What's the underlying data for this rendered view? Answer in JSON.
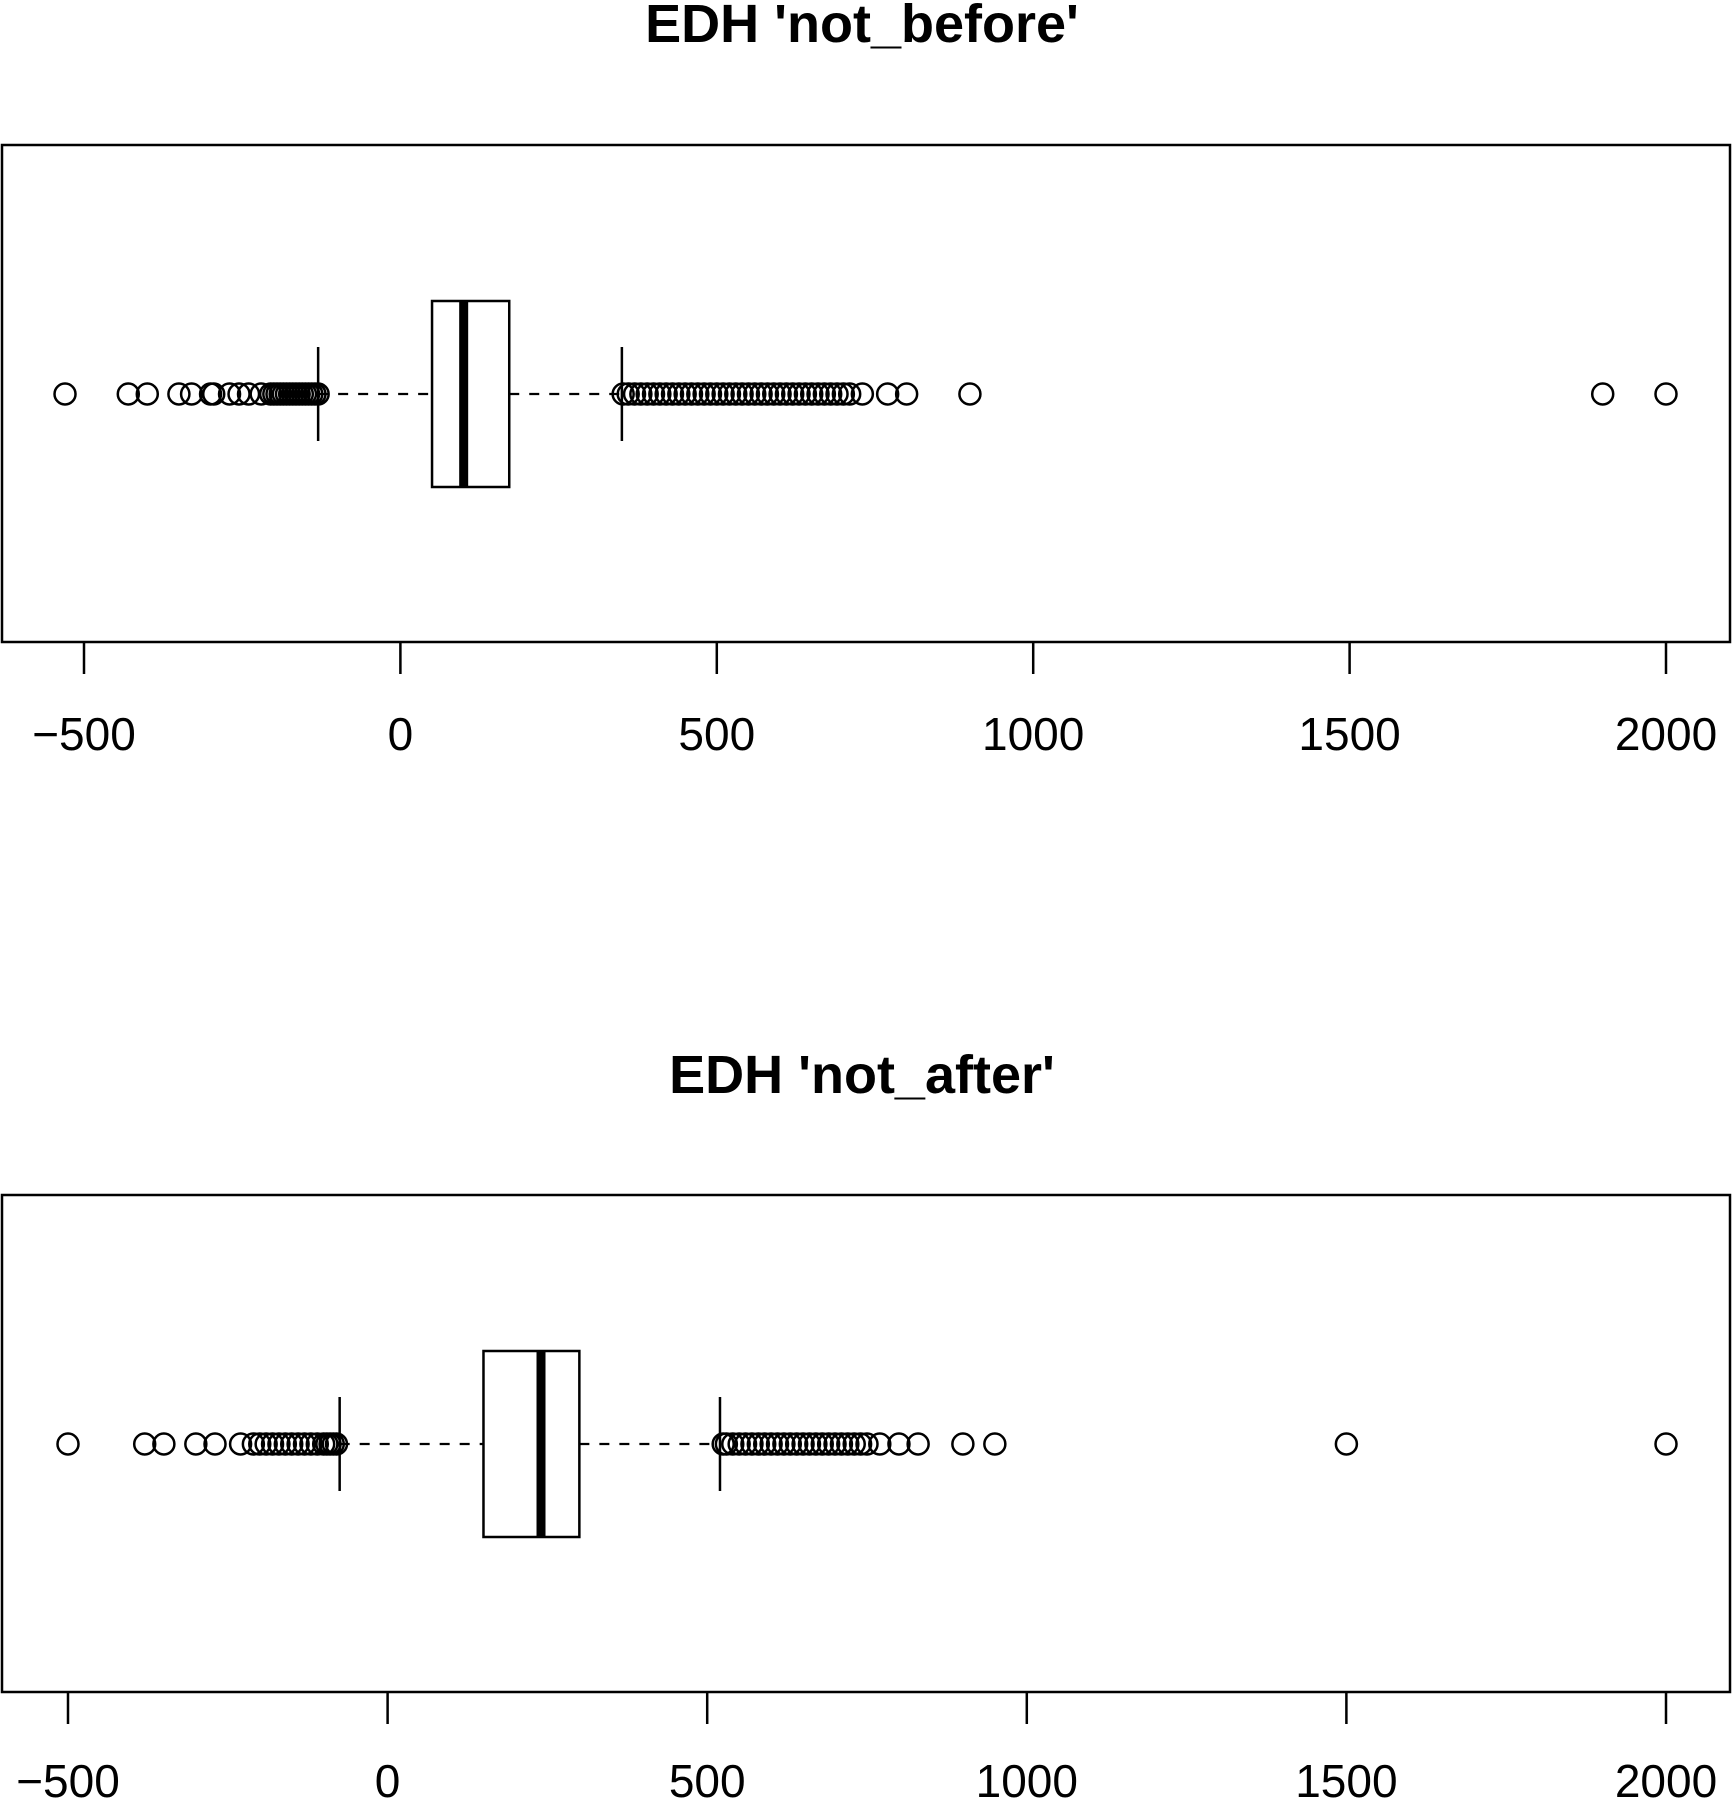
{
  "chart_data": [
    {
      "type": "boxplot",
      "orientation": "horizontal",
      "title": "EDH 'not_before'",
      "xlabel": "",
      "ylabel": "",
      "xlim": [
        -500,
        2000
      ],
      "ticks": [
        -500,
        0,
        500,
        1000,
        1500,
        2000
      ],
      "tick_labels": [
        "−500",
        "0",
        "500",
        "1000",
        "1500",
        "2000"
      ],
      "grid": false,
      "box": {
        "whisker_low": -130,
        "q1": 50,
        "median": 100,
        "q3": 172,
        "whisker_high": 350
      },
      "outliers": [
        -530,
        -430,
        -400,
        -350,
        -330,
        -300,
        -295,
        -270,
        -255,
        -240,
        -220,
        -205,
        -200,
        -195,
        -190,
        -185,
        -180,
        -175,
        -170,
        -165,
        -160,
        -155,
        -150,
        -145,
        -140,
        -135,
        -130,
        352,
        360,
        370,
        380,
        390,
        400,
        410,
        420,
        430,
        440,
        450,
        460,
        470,
        480,
        490,
        500,
        510,
        520,
        530,
        540,
        550,
        560,
        570,
        580,
        590,
        600,
        610,
        620,
        630,
        640,
        650,
        660,
        670,
        680,
        690,
        700,
        710,
        730,
        770,
        800,
        900,
        1900,
        2000
      ]
    },
    {
      "type": "boxplot",
      "orientation": "horizontal",
      "title": "EDH 'not_after'",
      "xlabel": "",
      "ylabel": "",
      "xlim": [
        -500,
        2000
      ],
      "ticks": [
        -500,
        0,
        500,
        1000,
        1500,
        2000
      ],
      "tick_labels": [
        "−500",
        "0",
        "500",
        "1000",
        "1500",
        "2000"
      ],
      "grid": false,
      "box": {
        "whisker_low": -75,
        "q1": 150,
        "median": 240,
        "q3": 300,
        "whisker_high": 520
      },
      "outliers": [
        -500,
        -380,
        -350,
        -300,
        -270,
        -230,
        -210,
        -200,
        -190,
        -180,
        -170,
        -160,
        -150,
        -140,
        -130,
        -120,
        -110,
        -100,
        -95,
        -90,
        -85,
        -80,
        525,
        530,
        540,
        550,
        560,
        570,
        580,
        590,
        600,
        610,
        620,
        630,
        640,
        650,
        660,
        670,
        680,
        690,
        700,
        710,
        720,
        730,
        740,
        750,
        770,
        800,
        830,
        900,
        950,
        1500,
        2000
      ]
    }
  ]
}
